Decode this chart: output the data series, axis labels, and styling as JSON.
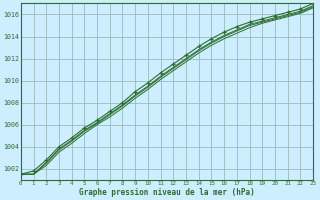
{
  "title": "Graphe pression niveau de la mer (hPa)",
  "xlabel": "Graphe pression niveau de la mer (hPa)",
  "background_color": "#cceeff",
  "plot_bg_color": "#cceeff",
  "grid_color": "#99bbbb",
  "line_color": "#2d6e2d",
  "marker_color": "#2d6e2d",
  "xlim": [
    0,
    23
  ],
  "ylim": [
    1001,
    1017
  ],
  "yticks": [
    1002,
    1004,
    1006,
    1008,
    1010,
    1012,
    1014,
    1016
  ],
  "xticks": [
    0,
    1,
    2,
    3,
    4,
    5,
    6,
    7,
    8,
    9,
    10,
    11,
    12,
    13,
    14,
    15,
    16,
    17,
    18,
    19,
    20,
    21,
    22,
    23
  ],
  "series_main": [
    1001.5,
    1001.8,
    1002.8,
    1004.0,
    1004.8,
    1005.7,
    1006.4,
    1007.2,
    1008.0,
    1009.0,
    1009.8,
    1010.7,
    1011.5,
    1012.3,
    1013.1,
    1013.8,
    1014.4,
    1014.9,
    1015.3,
    1015.6,
    1015.9,
    1016.2,
    1016.5,
    1017.0
  ],
  "series_others": [
    [
      1001.5,
      1001.5,
      1002.3,
      1003.5,
      1004.3,
      1005.2,
      1006.0,
      1006.7,
      1007.5,
      1008.4,
      1009.2,
      1010.1,
      1010.9,
      1011.7,
      1012.5,
      1013.2,
      1013.8,
      1014.3,
      1014.8,
      1015.2,
      1015.5,
      1015.8,
      1016.1,
      1016.6
    ],
    [
      1001.5,
      1001.5,
      1002.5,
      1003.7,
      1004.5,
      1005.4,
      1006.1,
      1006.9,
      1007.7,
      1008.6,
      1009.4,
      1010.3,
      1011.1,
      1011.9,
      1012.7,
      1013.4,
      1014.0,
      1014.5,
      1015.0,
      1015.3,
      1015.6,
      1015.9,
      1016.2,
      1016.7
    ],
    [
      1001.5,
      1001.5,
      1002.6,
      1003.8,
      1004.6,
      1005.5,
      1006.2,
      1007.0,
      1007.8,
      1008.7,
      1009.5,
      1010.4,
      1011.2,
      1012.0,
      1012.8,
      1013.5,
      1014.1,
      1014.6,
      1015.1,
      1015.4,
      1015.7,
      1016.0,
      1016.3,
      1016.8
    ]
  ]
}
